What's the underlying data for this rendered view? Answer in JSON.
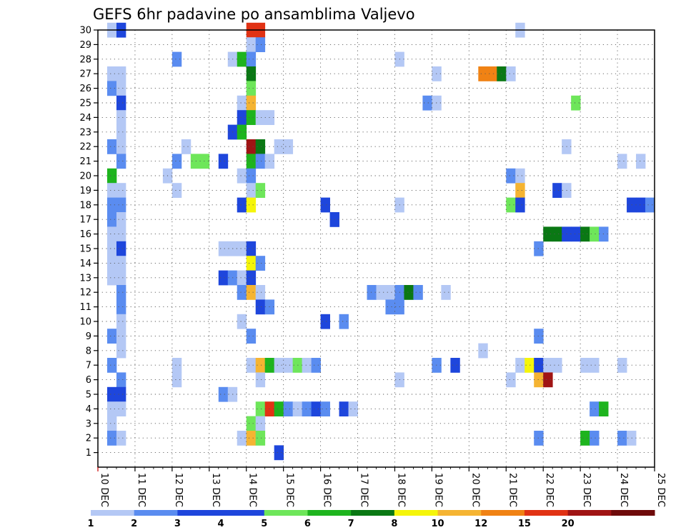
{
  "chart_data": {
    "type": "heatmap",
    "title": "GEFS 6hr padavine po ansamblima Valjevo",
    "xlabel": "",
    "ylabel": "",
    "x_tick_labels": [
      "10 DEC",
      "11 DEC",
      "12 DEC",
      "13 DEC",
      "14 DEC",
      "15 DEC",
      "16 DEC",
      "17 DEC",
      "18 DEC",
      "19 DEC",
      "20 DEC",
      "21 DEC",
      "22 DEC",
      "23 DEC",
      "24 DEC",
      "25 DEC"
    ],
    "x_range_days": [
      10,
      25
    ],
    "y_range": [
      0,
      30
    ],
    "y_tick_labels": [
      "1",
      "2",
      "3",
      "4",
      "5",
      "6",
      "7",
      "8",
      "9",
      "10",
      "11",
      "12",
      "13",
      "14",
      "15",
      "16",
      "17",
      "18",
      "19",
      "20",
      "21",
      "22",
      "23",
      "24",
      "25",
      "26",
      "27",
      "28",
      "29",
      "30"
    ],
    "grid": true,
    "colorbar": {
      "labels": [
        "1",
        "2",
        "3",
        "4",
        "5",
        "6",
        "7",
        "8",
        "10",
        "12",
        "15",
        "20"
      ],
      "colors": [
        "#b4c8f5",
        "#5a8cf0",
        "#1e46dc",
        "#1e46dc",
        "#6ee65a",
        "#1eb41e",
        "#0a7814",
        "#f5f50a",
        "#f5b432",
        "#f08214",
        "#e13214",
        "#a01414",
        "#6e0a0a"
      ]
    },
    "cells": [
      {
        "m": 30,
        "t": 10.25,
        "v": "#b4c8f5"
      },
      {
        "m": 30,
        "t": 10.5,
        "v": "#1e46dc"
      },
      {
        "m": 30,
        "t": 14.0,
        "v": "#e13214"
      },
      {
        "m": 30,
        "t": 14.25,
        "v": "#e13214"
      },
      {
        "m": 30,
        "t": 21.25,
        "v": "#b4c8f5"
      },
      {
        "m": 29,
        "t": 14.0,
        "v": "#b4c8f5"
      },
      {
        "m": 29,
        "t": 14.25,
        "v": "#5a8cf0"
      },
      {
        "m": 28,
        "t": 12.0,
        "v": "#5a8cf0"
      },
      {
        "m": 28,
        "t": 13.5,
        "v": "#b4c8f5"
      },
      {
        "m": 28,
        "t": 13.75,
        "v": "#1eb41e"
      },
      {
        "m": 28,
        "t": 14.0,
        "v": "#5a8cf0"
      },
      {
        "m": 28,
        "t": 18.0,
        "v": "#b4c8f5"
      },
      {
        "m": 27,
        "t": 10.25,
        "v": "#b4c8f5"
      },
      {
        "m": 27,
        "t": 10.5,
        "v": "#b4c8f5"
      },
      {
        "m": 27,
        "t": 14.0,
        "v": "#0a7814"
      },
      {
        "m": 27,
        "t": 19.0,
        "v": "#b4c8f5"
      },
      {
        "m": 27,
        "t": 20.25,
        "v": "#f08214"
      },
      {
        "m": 27,
        "t": 20.5,
        "v": "#f08214"
      },
      {
        "m": 27,
        "t": 20.75,
        "v": "#0a7814"
      },
      {
        "m": 27,
        "t": 21.0,
        "v": "#b4c8f5"
      },
      {
        "m": 26,
        "t": 10.25,
        "v": "#5a8cf0"
      },
      {
        "m": 26,
        "t": 10.5,
        "v": "#b4c8f5"
      },
      {
        "m": 26,
        "t": 14.0,
        "v": "#6ee65a"
      },
      {
        "m": 25,
        "t": 10.5,
        "v": "#1e46dc"
      },
      {
        "m": 25,
        "t": 13.75,
        "v": "#b4c8f5"
      },
      {
        "m": 25,
        "t": 14.0,
        "v": "#f5b432"
      },
      {
        "m": 25,
        "t": 18.75,
        "v": "#5a8cf0"
      },
      {
        "m": 25,
        "t": 19.0,
        "v": "#b4c8f5"
      },
      {
        "m": 25,
        "t": 22.75,
        "v": "#6ee65a"
      },
      {
        "m": 24,
        "t": 10.5,
        "v": "#b4c8f5"
      },
      {
        "m": 24,
        "t": 13.75,
        "v": "#1e46dc"
      },
      {
        "m": 24,
        "t": 14.0,
        "v": "#1eb41e"
      },
      {
        "m": 24,
        "t": 14.25,
        "v": "#b4c8f5"
      },
      {
        "m": 24,
        "t": 14.5,
        "v": "#b4c8f5"
      },
      {
        "m": 23,
        "t": 10.5,
        "v": "#b4c8f5"
      },
      {
        "m": 23,
        "t": 13.5,
        "v": "#1e46dc"
      },
      {
        "m": 23,
        "t": 13.75,
        "v": "#1eb41e"
      },
      {
        "m": 22,
        "t": 10.25,
        "v": "#5a8cf0"
      },
      {
        "m": 22,
        "t": 10.5,
        "v": "#b4c8f5"
      },
      {
        "m": 22,
        "t": 12.25,
        "v": "#b4c8f5"
      },
      {
        "m": 22,
        "t": 14.0,
        "v": "#a01414"
      },
      {
        "m": 22,
        "t": 14.25,
        "v": "#0a7814"
      },
      {
        "m": 22,
        "t": 14.75,
        "v": "#b4c8f5"
      },
      {
        "m": 22,
        "t": 15.0,
        "v": "#b4c8f5"
      },
      {
        "m": 22,
        "t": 22.5,
        "v": "#b4c8f5"
      },
      {
        "m": 21,
        "t": 10.5,
        "v": "#5a8cf0"
      },
      {
        "m": 21,
        "t": 12.0,
        "v": "#5a8cf0"
      },
      {
        "m": 21,
        "t": 12.5,
        "v": "#6ee65a"
      },
      {
        "m": 21,
        "t": 12.75,
        "v": "#6ee65a"
      },
      {
        "m": 21,
        "t": 13.25,
        "v": "#1e46dc"
      },
      {
        "m": 21,
        "t": 14.0,
        "v": "#1eb41e"
      },
      {
        "m": 21,
        "t": 14.25,
        "v": "#5a8cf0"
      },
      {
        "m": 21,
        "t": 14.5,
        "v": "#b4c8f5"
      },
      {
        "m": 21,
        "t": 24.0,
        "v": "#b4c8f5"
      },
      {
        "m": 21,
        "t": 24.5,
        "v": "#b4c8f5"
      },
      {
        "m": 20,
        "t": 10.25,
        "v": "#1eb41e"
      },
      {
        "m": 20,
        "t": 11.75,
        "v": "#b4c8f5"
      },
      {
        "m": 20,
        "t": 13.75,
        "v": "#b4c8f5"
      },
      {
        "m": 20,
        "t": 14.0,
        "v": "#5a8cf0"
      },
      {
        "m": 20,
        "t": 21.0,
        "v": "#5a8cf0"
      },
      {
        "m": 20,
        "t": 21.25,
        "v": "#b4c8f5"
      },
      {
        "m": 19,
        "t": 10.25,
        "v": "#b4c8f5"
      },
      {
        "m": 19,
        "t": 10.5,
        "v": "#b4c8f5"
      },
      {
        "m": 19,
        "t": 12.0,
        "v": "#b4c8f5"
      },
      {
        "m": 19,
        "t": 14.0,
        "v": "#b4c8f5"
      },
      {
        "m": 19,
        "t": 14.25,
        "v": "#6ee65a"
      },
      {
        "m": 19,
        "t": 21.25,
        "v": "#f5b432"
      },
      {
        "m": 19,
        "t": 22.25,
        "v": "#1e46dc"
      },
      {
        "m": 19,
        "t": 22.5,
        "v": "#b4c8f5"
      },
      {
        "m": 18,
        "t": 10.25,
        "v": "#5a8cf0"
      },
      {
        "m": 18,
        "t": 10.5,
        "v": "#5a8cf0"
      },
      {
        "m": 18,
        "t": 13.75,
        "v": "#1e46dc"
      },
      {
        "m": 18,
        "t": 14.0,
        "v": "#f5f50a"
      },
      {
        "m": 18,
        "t": 16.0,
        "v": "#1e46dc"
      },
      {
        "m": 18,
        "t": 18.0,
        "v": "#b4c8f5"
      },
      {
        "m": 18,
        "t": 21.0,
        "v": "#6ee65a"
      },
      {
        "m": 18,
        "t": 21.25,
        "v": "#1e46dc"
      },
      {
        "m": 18,
        "t": 24.25,
        "v": "#1e46dc"
      },
      {
        "m": 18,
        "t": 24.5,
        "v": "#1e46dc"
      },
      {
        "m": 18,
        "t": 24.75,
        "v": "#5a8cf0"
      },
      {
        "m": 17,
        "t": 10.25,
        "v": "#5a8cf0"
      },
      {
        "m": 17,
        "t": 10.5,
        "v": "#b4c8f5"
      },
      {
        "m": 17,
        "t": 16.25,
        "v": "#1e46dc"
      },
      {
        "m": 16,
        "t": 10.25,
        "v": "#b4c8f5"
      },
      {
        "m": 16,
        "t": 10.5,
        "v": "#b4c8f5"
      },
      {
        "m": 16,
        "t": 22.0,
        "v": "#0a7814"
      },
      {
        "m": 16,
        "t": 22.25,
        "v": "#0a7814"
      },
      {
        "m": 16,
        "t": 22.5,
        "v": "#1e46dc"
      },
      {
        "m": 16,
        "t": 22.75,
        "v": "#1e46dc"
      },
      {
        "m": 16,
        "t": 23.0,
        "v": "#0a7814"
      },
      {
        "m": 16,
        "t": 23.25,
        "v": "#6ee65a"
      },
      {
        "m": 16,
        "t": 23.5,
        "v": "#5a8cf0"
      },
      {
        "m": 15,
        "t": 10.25,
        "v": "#b4c8f5"
      },
      {
        "m": 15,
        "t": 10.5,
        "v": "#1e46dc"
      },
      {
        "m": 15,
        "t": 13.25,
        "v": "#b4c8f5"
      },
      {
        "m": 15,
        "t": 13.5,
        "v": "#b4c8f5"
      },
      {
        "m": 15,
        "t": 13.75,
        "v": "#b4c8f5"
      },
      {
        "m": 15,
        "t": 14.0,
        "v": "#1e46dc"
      },
      {
        "m": 15,
        "t": 21.75,
        "v": "#5a8cf0"
      },
      {
        "m": 14,
        "t": 10.25,
        "v": "#b4c8f5"
      },
      {
        "m": 14,
        "t": 10.5,
        "v": "#b4c8f5"
      },
      {
        "m": 14,
        "t": 14.0,
        "v": "#f5f50a"
      },
      {
        "m": 14,
        "t": 14.25,
        "v": "#5a8cf0"
      },
      {
        "m": 13,
        "t": 10.25,
        "v": "#b4c8f5"
      },
      {
        "m": 13,
        "t": 10.5,
        "v": "#b4c8f5"
      },
      {
        "m": 13,
        "t": 13.25,
        "v": "#1e46dc"
      },
      {
        "m": 13,
        "t": 13.5,
        "v": "#5a8cf0"
      },
      {
        "m": 13,
        "t": 13.75,
        "v": "#b4c8f5"
      },
      {
        "m": 13,
        "t": 14.0,
        "v": "#1e46dc"
      },
      {
        "m": 12,
        "t": 10.5,
        "v": "#5a8cf0"
      },
      {
        "m": 12,
        "t": 13.75,
        "v": "#5a8cf0"
      },
      {
        "m": 12,
        "t": 14.0,
        "v": "#f5b432"
      },
      {
        "m": 12,
        "t": 14.25,
        "v": "#b4c8f5"
      },
      {
        "m": 12,
        "t": 17.25,
        "v": "#5a8cf0"
      },
      {
        "m": 12,
        "t": 17.5,
        "v": "#b4c8f5"
      },
      {
        "m": 12,
        "t": 17.75,
        "v": "#b4c8f5"
      },
      {
        "m": 12,
        "t": 18.0,
        "v": "#5a8cf0"
      },
      {
        "m": 12,
        "t": 18.25,
        "v": "#0a7814"
      },
      {
        "m": 12,
        "t": 18.5,
        "v": "#5a8cf0"
      },
      {
        "m": 12,
        "t": 19.25,
        "v": "#b4c8f5"
      },
      {
        "m": 11,
        "t": 10.5,
        "v": "#5a8cf0"
      },
      {
        "m": 11,
        "t": 14.25,
        "v": "#1e46dc"
      },
      {
        "m": 11,
        "t": 14.5,
        "v": "#5a8cf0"
      },
      {
        "m": 11,
        "t": 17.75,
        "v": "#5a8cf0"
      },
      {
        "m": 11,
        "t": 18.0,
        "v": "#5a8cf0"
      },
      {
        "m": 10,
        "t": 10.5,
        "v": "#b4c8f5"
      },
      {
        "m": 10,
        "t": 13.75,
        "v": "#b4c8f5"
      },
      {
        "m": 10,
        "t": 16.0,
        "v": "#1e46dc"
      },
      {
        "m": 10,
        "t": 16.5,
        "v": "#5a8cf0"
      },
      {
        "m": 9,
        "t": 10.25,
        "v": "#5a8cf0"
      },
      {
        "m": 9,
        "t": 10.5,
        "v": "#b4c8f5"
      },
      {
        "m": 9,
        "t": 14.0,
        "v": "#5a8cf0"
      },
      {
        "m": 9,
        "t": 21.75,
        "v": "#5a8cf0"
      },
      {
        "m": 8,
        "t": 10.5,
        "v": "#b4c8f5"
      },
      {
        "m": 8,
        "t": 20.25,
        "v": "#b4c8f5"
      },
      {
        "m": 7,
        "t": 10.25,
        "v": "#5a8cf0"
      },
      {
        "m": 7,
        "t": 12.0,
        "v": "#b4c8f5"
      },
      {
        "m": 7,
        "t": 14.0,
        "v": "#b4c8f5"
      },
      {
        "m": 7,
        "t": 14.25,
        "v": "#f5b432"
      },
      {
        "m": 7,
        "t": 14.5,
        "v": "#1eb41e"
      },
      {
        "m": 7,
        "t": 14.75,
        "v": "#b4c8f5"
      },
      {
        "m": 7,
        "t": 15.0,
        "v": "#b4c8f5"
      },
      {
        "m": 7,
        "t": 15.25,
        "v": "#6ee65a"
      },
      {
        "m": 7,
        "t": 15.5,
        "v": "#b4c8f5"
      },
      {
        "m": 7,
        "t": 15.75,
        "v": "#5a8cf0"
      },
      {
        "m": 7,
        "t": 19.0,
        "v": "#5a8cf0"
      },
      {
        "m": 7,
        "t": 19.5,
        "v": "#1e46dc"
      },
      {
        "m": 7,
        "t": 21.25,
        "v": "#b4c8f5"
      },
      {
        "m": 7,
        "t": 21.5,
        "v": "#f5f50a"
      },
      {
        "m": 7,
        "t": 21.75,
        "v": "#1e46dc"
      },
      {
        "m": 7,
        "t": 22.0,
        "v": "#b4c8f5"
      },
      {
        "m": 7,
        "t": 22.25,
        "v": "#b4c8f5"
      },
      {
        "m": 7,
        "t": 23.0,
        "v": "#b4c8f5"
      },
      {
        "m": 7,
        "t": 23.25,
        "v": "#b4c8f5"
      },
      {
        "m": 7,
        "t": 24.0,
        "v": "#b4c8f5"
      },
      {
        "m": 6,
        "t": 10.5,
        "v": "#5a8cf0"
      },
      {
        "m": 6,
        "t": 12.0,
        "v": "#b4c8f5"
      },
      {
        "m": 6,
        "t": 14.25,
        "v": "#b4c8f5"
      },
      {
        "m": 6,
        "t": 18.0,
        "v": "#b4c8f5"
      },
      {
        "m": 6,
        "t": 21.0,
        "v": "#b4c8f5"
      },
      {
        "m": 6,
        "t": 21.75,
        "v": "#f5b432"
      },
      {
        "m": 6,
        "t": 22.0,
        "v": "#a01414"
      },
      {
        "m": 5,
        "t": 10.25,
        "v": "#1e46dc"
      },
      {
        "m": 5,
        "t": 10.5,
        "v": "#1e46dc"
      },
      {
        "m": 5,
        "t": 13.25,
        "v": "#5a8cf0"
      },
      {
        "m": 5,
        "t": 13.5,
        "v": "#b4c8f5"
      },
      {
        "m": 4,
        "t": 10.25,
        "v": "#b4c8f5"
      },
      {
        "m": 4,
        "t": 10.5,
        "v": "#b4c8f5"
      },
      {
        "m": 4,
        "t": 14.25,
        "v": "#6ee65a"
      },
      {
        "m": 4,
        "t": 14.5,
        "v": "#e13214"
      },
      {
        "m": 4,
        "t": 14.75,
        "v": "#1eb41e"
      },
      {
        "m": 4,
        "t": 15.0,
        "v": "#5a8cf0"
      },
      {
        "m": 4,
        "t": 15.25,
        "v": "#b4c8f5"
      },
      {
        "m": 4,
        "t": 15.5,
        "v": "#5a8cf0"
      },
      {
        "m": 4,
        "t": 15.75,
        "v": "#1e46dc"
      },
      {
        "m": 4,
        "t": 16.0,
        "v": "#5a8cf0"
      },
      {
        "m": 4,
        "t": 16.5,
        "v": "#1e46dc"
      },
      {
        "m": 4,
        "t": 16.75,
        "v": "#b4c8f5"
      },
      {
        "m": 4,
        "t": 23.25,
        "v": "#5a8cf0"
      },
      {
        "m": 4,
        "t": 23.5,
        "v": "#1eb41e"
      },
      {
        "m": 3,
        "t": 10.25,
        "v": "#b4c8f5"
      },
      {
        "m": 3,
        "t": 14.0,
        "v": "#6ee65a"
      },
      {
        "m": 3,
        "t": 14.25,
        "v": "#b4c8f5"
      },
      {
        "m": 2,
        "t": 10.25,
        "v": "#5a8cf0"
      },
      {
        "m": 2,
        "t": 10.5,
        "v": "#b4c8f5"
      },
      {
        "m": 2,
        "t": 13.75,
        "v": "#b4c8f5"
      },
      {
        "m": 2,
        "t": 14.0,
        "v": "#f5b432"
      },
      {
        "m": 2,
        "t": 14.25,
        "v": "#6ee65a"
      },
      {
        "m": 2,
        "t": 21.75,
        "v": "#5a8cf0"
      },
      {
        "m": 2,
        "t": 23.0,
        "v": "#1eb41e"
      },
      {
        "m": 2,
        "t": 23.25,
        "v": "#5a8cf0"
      },
      {
        "m": 2,
        "t": 24.0,
        "v": "#5a8cf0"
      },
      {
        "m": 2,
        "t": 24.25,
        "v": "#b4c8f5"
      },
      {
        "m": 1,
        "t": 14.75,
        "v": "#1e46dc"
      }
    ]
  }
}
